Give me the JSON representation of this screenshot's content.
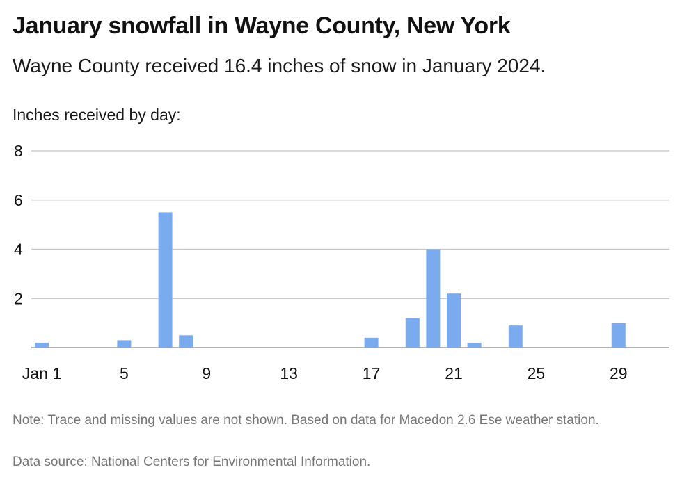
{
  "header": {
    "title": "January snowfall in Wayne County, New York",
    "subtitle": "Wayne County received 16.4 inches of snow in January 2024."
  },
  "footer": {
    "note": "Note: Trace and missing values are not shown. Based on data for Macedon 2.6 Ese weather station.",
    "source": "Data source: National Centers for Environmental Information."
  },
  "chart_data": {
    "type": "bar",
    "title": "January snowfall in Wayne County, New York",
    "subtitle": "Wayne County received 16.4 inches of snow in January 2024.",
    "ylabel": "Inches received by day:",
    "xlabel": "",
    "ylim": [
      0,
      8
    ],
    "y_ticks": [
      2,
      4,
      6,
      8
    ],
    "x_tick_days": [
      1,
      5,
      9,
      13,
      17,
      21,
      25,
      29
    ],
    "x_tick_labels": [
      "Jan 1",
      "5",
      "9",
      "13",
      "17",
      "21",
      "25",
      "29"
    ],
    "x_range_days": [
      1,
      31
    ],
    "bar_color": "#7aabee",
    "grid": true,
    "days": [
      1,
      5,
      7,
      8,
      17,
      19,
      20,
      21,
      22,
      24,
      29
    ],
    "values": [
      0.2,
      0.3,
      5.5,
      0.5,
      0.4,
      1.2,
      4.0,
      2.2,
      0.2,
      0.9,
      1.0
    ]
  }
}
